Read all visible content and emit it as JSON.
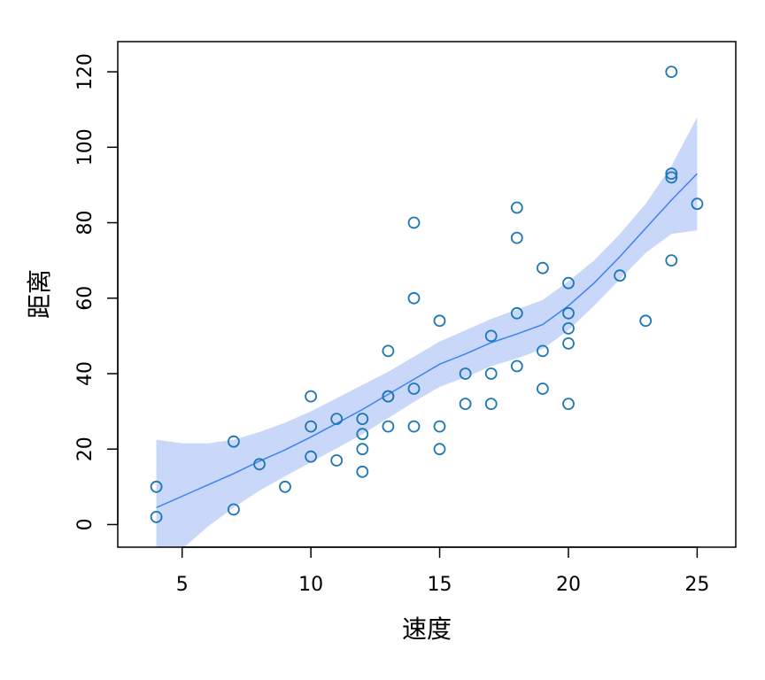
{
  "chart_data": {
    "type": "scatter",
    "xlabel": "速度",
    "ylabel": "距离",
    "xlim": [
      2.5,
      26.5
    ],
    "ylim": [
      -6,
      128
    ],
    "x_ticks": [
      5,
      10,
      15,
      20,
      25
    ],
    "y_ticks": [
      0,
      20,
      40,
      60,
      80,
      100,
      120
    ],
    "x_tick_labels": [
      "5",
      "10",
      "15",
      "20",
      "25"
    ],
    "y_tick_labels": [
      "0",
      "20",
      "40",
      "60",
      "80",
      "100",
      "120"
    ],
    "grid": false,
    "colors": {
      "points": "#1f77b4",
      "smooth_line": "#3b82f6",
      "confidence_band": "#c9d8f8"
    },
    "points": [
      [
        4,
        2
      ],
      [
        4,
        10
      ],
      [
        7,
        4
      ],
      [
        7,
        22
      ],
      [
        8,
        16
      ],
      [
        9,
        10
      ],
      [
        10,
        18
      ],
      [
        10,
        26
      ],
      [
        10,
        34
      ],
      [
        11,
        17
      ],
      [
        11,
        28
      ],
      [
        12,
        14
      ],
      [
        12,
        20
      ],
      [
        12,
        24
      ],
      [
        12,
        28
      ],
      [
        13,
        26
      ],
      [
        13,
        34
      ],
      [
        13,
        34
      ],
      [
        13,
        46
      ],
      [
        14,
        26
      ],
      [
        14,
        36
      ],
      [
        14,
        60
      ],
      [
        14,
        80
      ],
      [
        15,
        20
      ],
      [
        15,
        26
      ],
      [
        15,
        54
      ],
      [
        16,
        32
      ],
      [
        16,
        40
      ],
      [
        17,
        32
      ],
      [
        17,
        40
      ],
      [
        17,
        50
      ],
      [
        18,
        42
      ],
      [
        18,
        56
      ],
      [
        18,
        76
      ],
      [
        18,
        84
      ],
      [
        19,
        36
      ],
      [
        19,
        46
      ],
      [
        19,
        68
      ],
      [
        20,
        32
      ],
      [
        20,
        48
      ],
      [
        20,
        52
      ],
      [
        20,
        56
      ],
      [
        20,
        64
      ],
      [
        22,
        66
      ],
      [
        23,
        54
      ],
      [
        24,
        70
      ],
      [
        24,
        92
      ],
      [
        24,
        93
      ],
      [
        24,
        120
      ],
      [
        25,
        85
      ]
    ],
    "smooth": {
      "x": [
        4,
        5,
        6,
        7,
        8,
        9,
        10,
        11,
        12,
        13,
        14,
        15,
        16,
        17,
        18,
        19,
        20,
        21,
        22,
        23,
        24,
        25
      ],
      "y": [
        4.5,
        7.5,
        10.5,
        13.5,
        16.8,
        19.8,
        23.2,
        26.8,
        30.5,
        34.5,
        38.5,
        42.5,
        45.2,
        48.2,
        50.5,
        53,
        58,
        64,
        71,
        78.5,
        86,
        93
      ],
      "upper": [
        22.5,
        21.5,
        21.5,
        22.5,
        24.5,
        27,
        30,
        33.5,
        37,
        40.5,
        44.5,
        48.5,
        51.5,
        54.5,
        57,
        59.5,
        64.5,
        70,
        77,
        85,
        95,
        108
      ],
      "lower": [
        -15,
        -6.5,
        -0.5,
        4.5,
        9,
        12.8,
        16.5,
        20.2,
        24,
        28.2,
        32.5,
        36.5,
        39,
        42,
        44,
        46.5,
        51.5,
        58,
        65,
        72,
        77,
        78
      ]
    }
  }
}
